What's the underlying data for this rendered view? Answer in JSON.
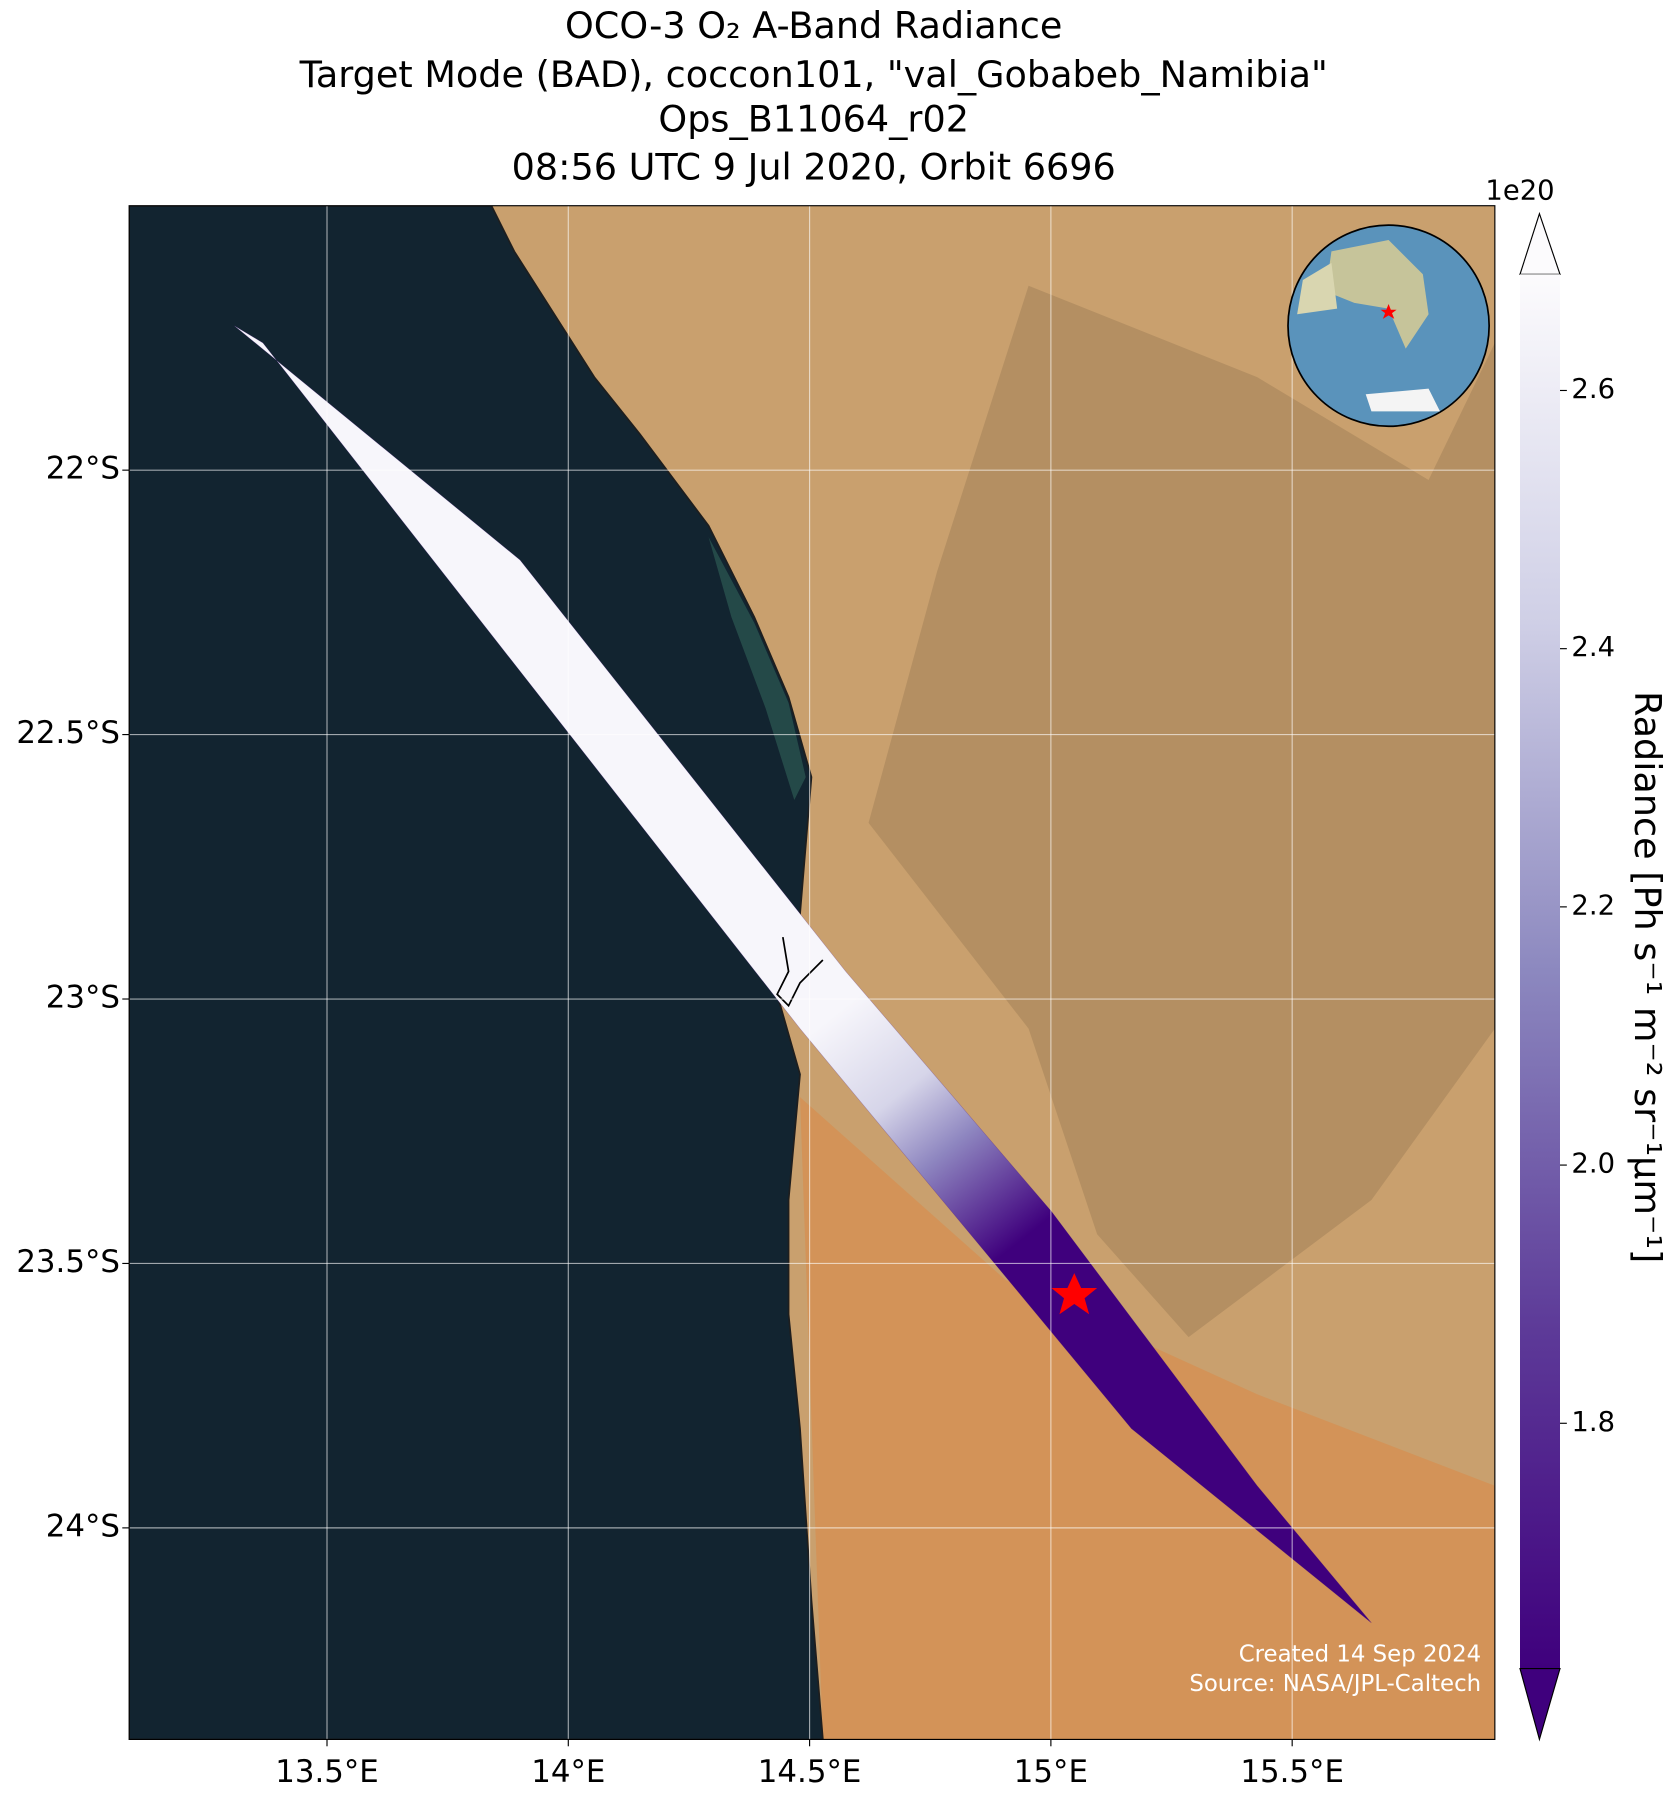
{
  "header": {
    "title": [
      "OCO-3 O₂ A-Band Radiance",
      "Target Mode (BAD), coccon101, \"val_Gobabeb_Namibia\"",
      "Ops_B11064_r02",
      "08:56 UTC 9 Jul 2020, Orbit 6696"
    ]
  },
  "map": {
    "xlim": [
      13.09,
      15.92
    ],
    "ylim": [
      -24.4,
      -21.5
    ],
    "xticks": [
      {
        "value": 13.5,
        "label": "13.5°E"
      },
      {
        "value": 14,
        "label": "14°E"
      },
      {
        "value": 14.5,
        "label": "14.5°E"
      },
      {
        "value": 15,
        "label": "15°E"
      },
      {
        "value": 15.5,
        "label": "15.5°E"
      }
    ],
    "yticks": [
      {
        "value": -22,
        "label": "22°S"
      },
      {
        "value": -22.5,
        "label": "22.5°S"
      },
      {
        "value": -23,
        "label": "23°S"
      },
      {
        "value": -23.5,
        "label": "23.5°S"
      },
      {
        "value": -24,
        "label": "24°S"
      }
    ],
    "credits": [
      "Created 14 Sep 2024",
      "Source: NASA/JPL-Caltech"
    ]
  },
  "colorbar": {
    "exponent": "1e20",
    "label": "Radiance [Ph s⁻¹ m⁻² sr⁻¹μm⁻¹]",
    "lim": [
      1.61,
      2.69
    ],
    "ticks": [
      1.8,
      2.0,
      2.2,
      2.4,
      2.6
    ]
  }
}
